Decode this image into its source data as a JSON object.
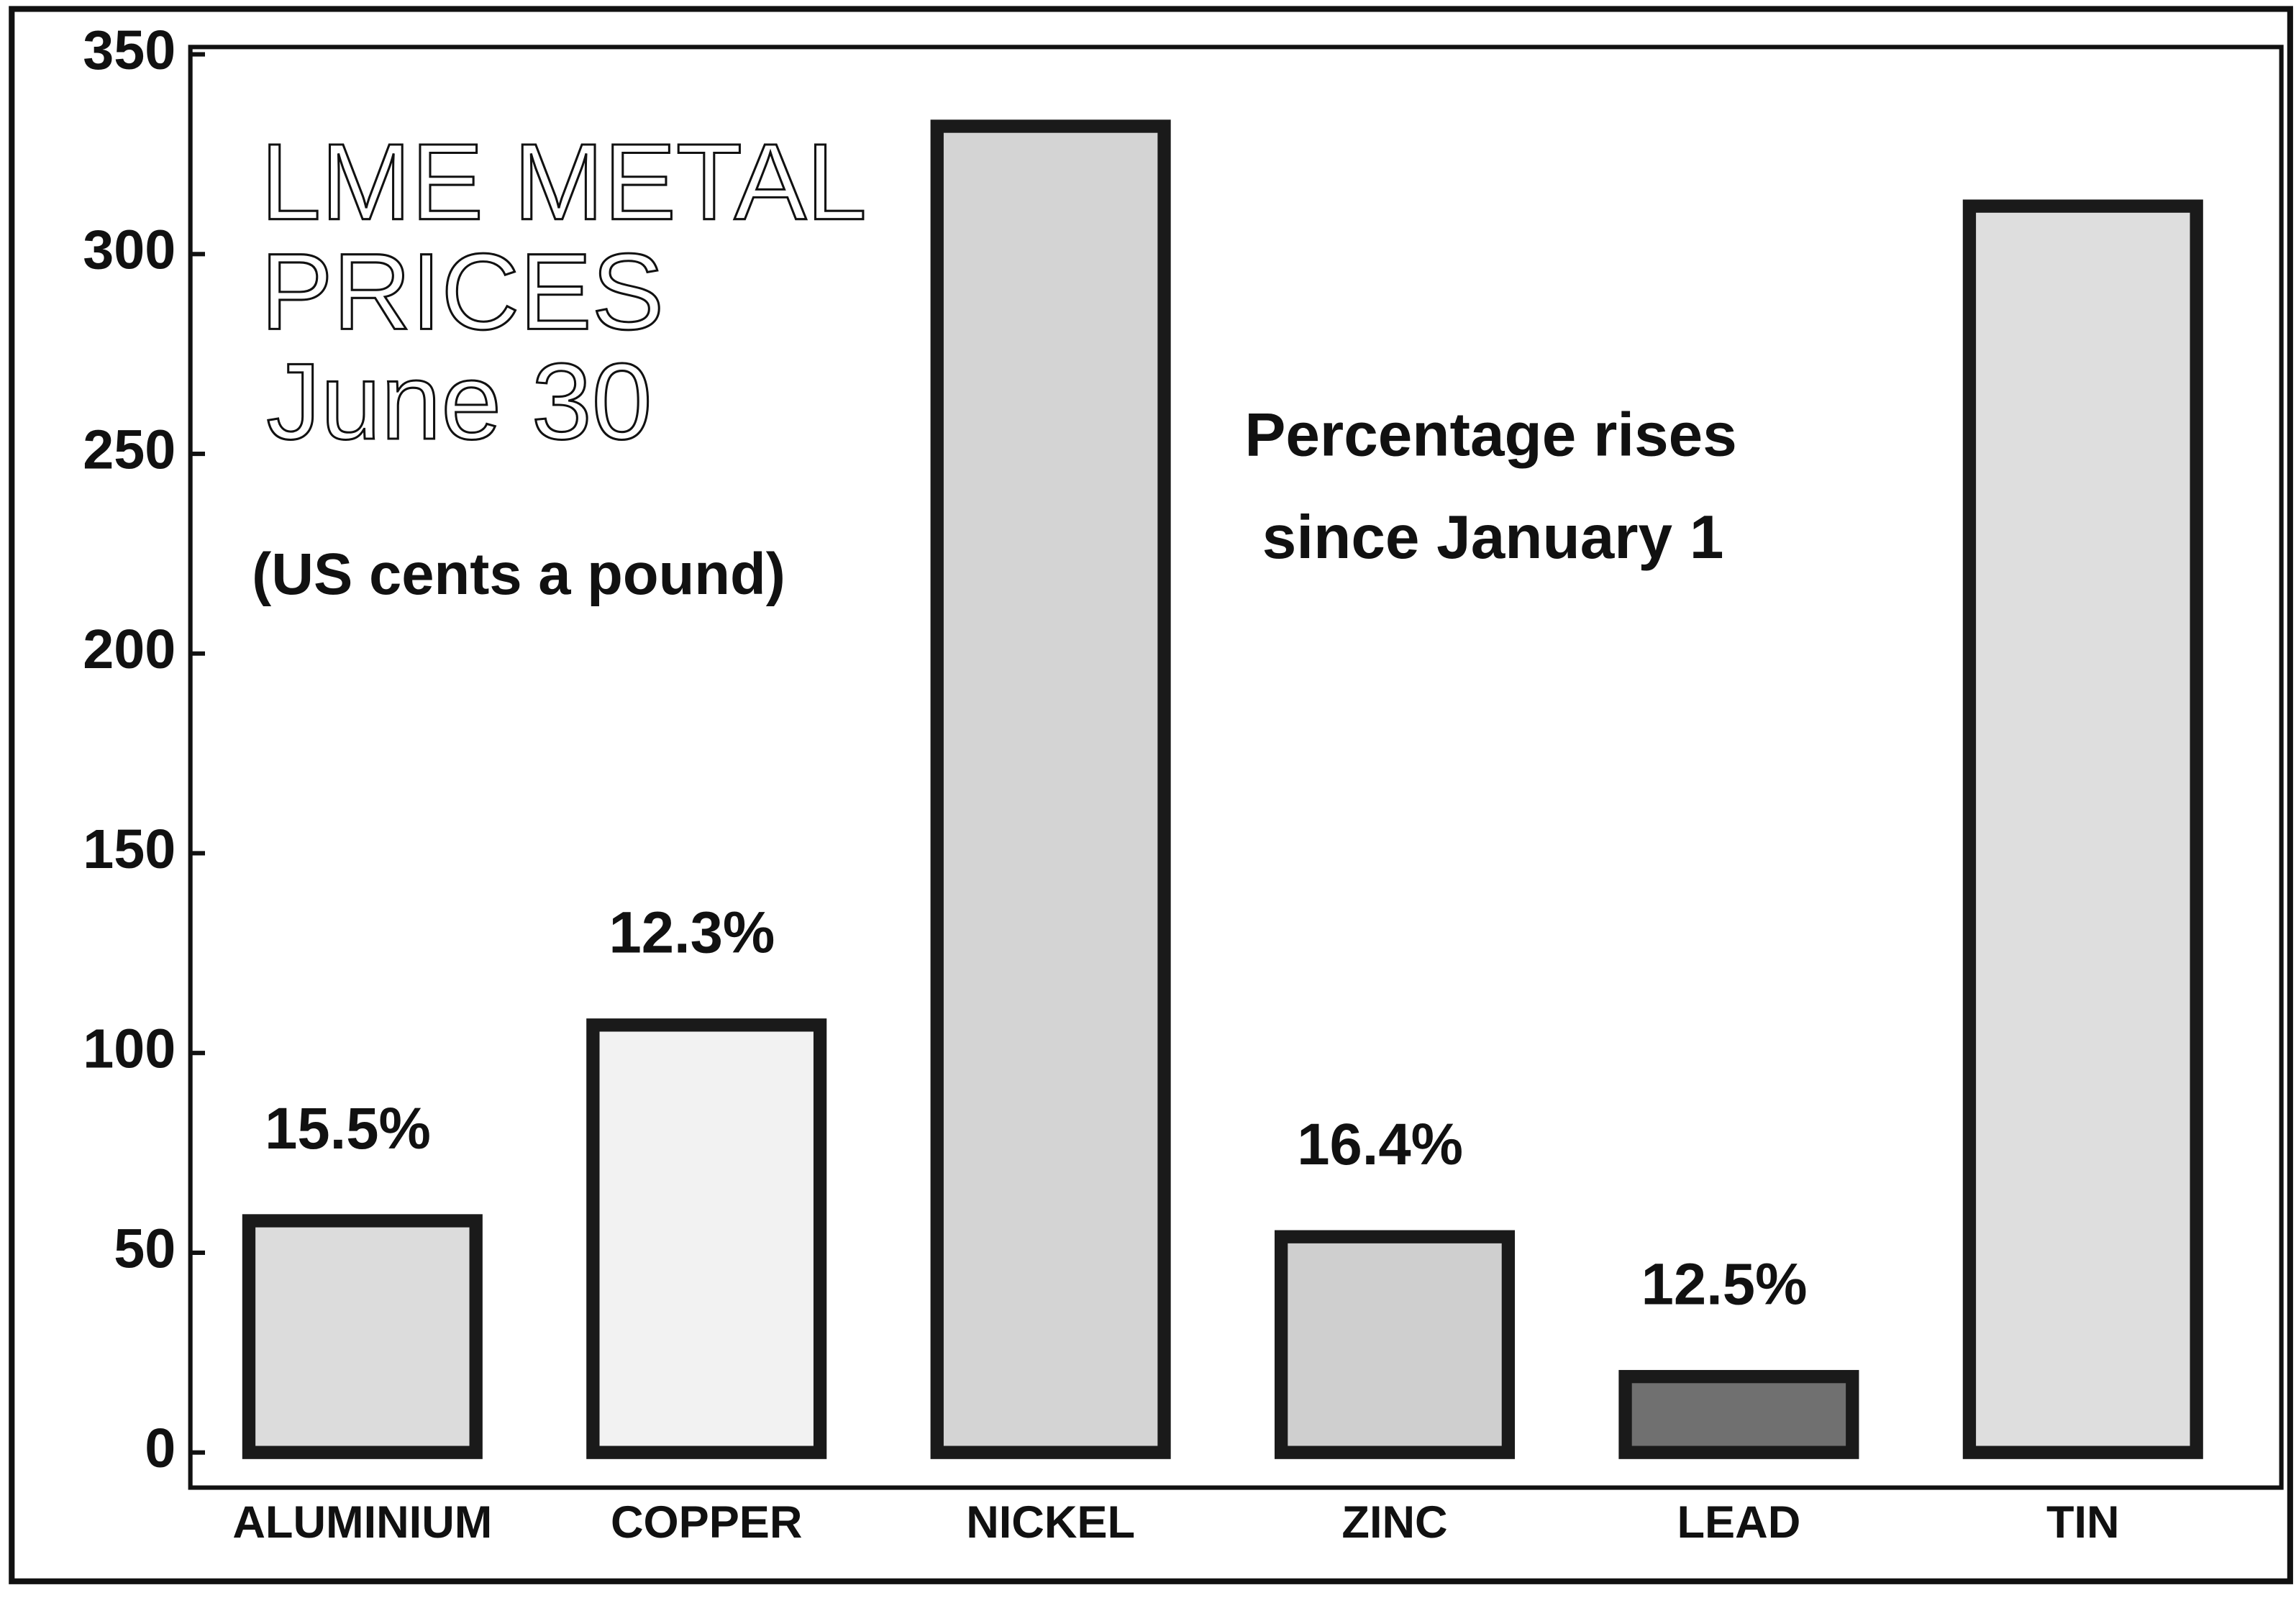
{
  "chart_data": {
    "type": "bar",
    "title": [
      "LME METAL",
      "PRICES"
    ],
    "subtitle": "June 30",
    "units": "(US cents a pound)",
    "annotation": [
      "Percentage rises",
      "since January 1"
    ],
    "categories": [
      "ALUMINIUM",
      "COPPER",
      "NICKEL",
      "ZINC",
      "LEAD",
      "TIN"
    ],
    "values": [
      58,
      107,
      332,
      54,
      19,
      312
    ],
    "colors": [
      "#dcdcdc",
      "#f2f2f2",
      "#d4d4d4",
      "#cfcfcf",
      "#707070",
      "#dedede"
    ],
    "rises": [
      15.5,
      12.3,
      null,
      16.4,
      12.5,
      null
    ],
    "rise_labels": [
      "15.5%",
      "12.3%",
      null,
      "16.4%",
      "12.5%",
      null
    ],
    "ylim": [
      0,
      350
    ],
    "yticks": [
      0,
      50,
      100,
      150,
      200,
      250,
      300,
      350
    ],
    "grid": false
  }
}
